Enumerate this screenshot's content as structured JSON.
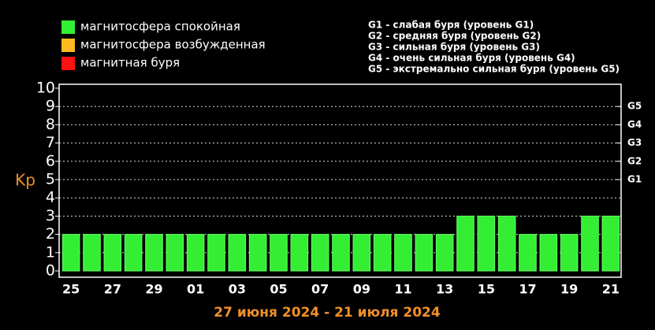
{
  "chart_data": {
    "type": "bar",
    "ylabel": "Kp",
    "xlabel": "27 июня 2024 - 21 июля 2024",
    "categories": [
      "25",
      null,
      "27",
      null,
      "29",
      null,
      "01",
      null,
      "03",
      null,
      "05",
      null,
      "07",
      null,
      "09",
      null,
      "11",
      null,
      "13",
      null,
      "15",
      null,
      "17",
      null,
      "19",
      null,
      "21"
    ],
    "values": [
      2,
      2,
      2,
      2,
      2,
      2,
      2,
      2,
      2,
      2,
      2,
      2,
      2,
      2,
      2,
      2,
      2,
      2,
      2,
      3,
      3,
      3,
      2,
      2,
      2,
      3,
      3
    ],
    "color": "#33ee33",
    "ylim": [
      0,
      10
    ],
    "yticks": [
      0,
      1,
      2,
      3,
      4,
      5,
      6,
      7,
      8,
      9,
      10
    ],
    "y2ticks": [
      {
        "value": 5,
        "label": "G1"
      },
      {
        "value": 6,
        "label": "G2"
      },
      {
        "value": 7,
        "label": "G3"
      },
      {
        "value": 8,
        "label": "G4"
      },
      {
        "value": 9,
        "label": "G5"
      }
    ],
    "grid": true,
    "legend": [
      {
        "name": "магнитосфера спокойная",
        "color": "#33ee33"
      },
      {
        "name": "магнитосфера возбужденная",
        "color": "#ffbb22"
      },
      {
        "name": "магнитная буря",
        "color": "#ff1111"
      }
    ],
    "notes": [
      "G1 - слабая буря (уровень G1)",
      "G2 - средняя буря (уровень G2)",
      "G3 - сильная буря (уровень G3)",
      "G4 - очень сильная буря (уровень G4)",
      "G5 - экстремально сильная буря (уровень G5)"
    ]
  }
}
